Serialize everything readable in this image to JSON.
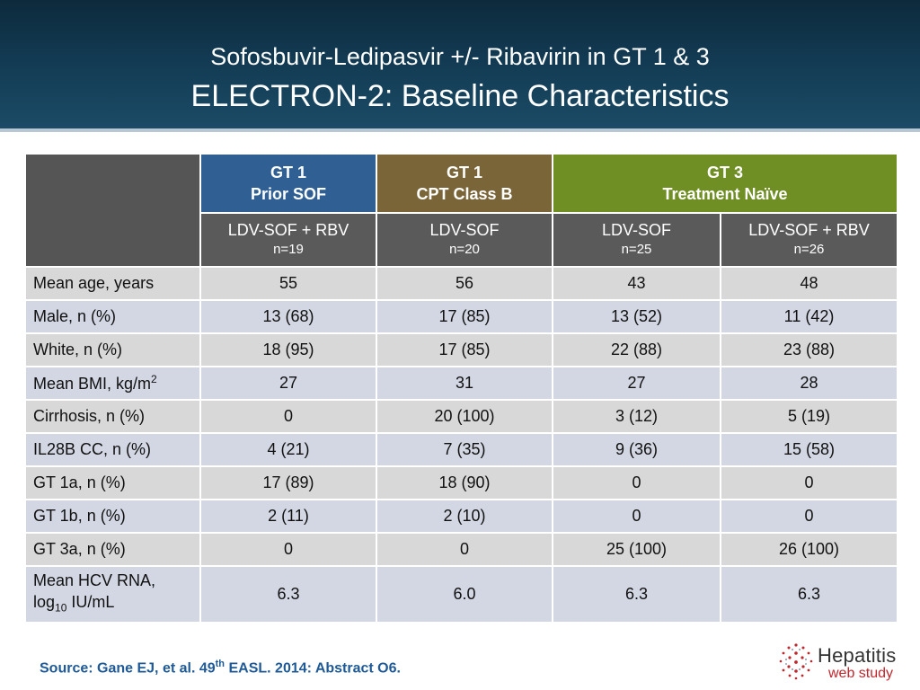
{
  "slide": {
    "title_line1": "Sofosbuvir-Ledipasvir +/- Ribavirin in GT 1 & 3",
    "title_line2": "ELECTRON-2: Baseline Characteristics"
  },
  "colors": {
    "gt1_prior_sof": "#2f5f93",
    "gt1_cpt_b": "#7a6538",
    "gt3_naive": "#6f8f25",
    "source_text": "#1f5a96",
    "logo_accent": "#c0272d"
  },
  "table": {
    "groups": [
      {
        "line1": "GT 1",
        "line2": "Prior SOF"
      },
      {
        "line1": "GT 1",
        "line2": "CPT Class B"
      },
      {
        "line1": "GT 3",
        "line2": "Treatment Naïve"
      }
    ],
    "arms": [
      {
        "treatment": "LDV-SOF + RBV",
        "n": "n=19"
      },
      {
        "treatment": "LDV-SOF",
        "n": "n=20"
      },
      {
        "treatment": "LDV-SOF",
        "n": "n=25"
      },
      {
        "treatment": "LDV-SOF + RBV",
        "n": "n=26"
      }
    ],
    "rows": [
      {
        "label": "Mean age, years",
        "values": [
          "55",
          "56",
          "43",
          "48"
        ]
      },
      {
        "label": "Male, n (%)",
        "values": [
          "13 (68)",
          "17 (85)",
          "13 (52)",
          "11 (42)"
        ]
      },
      {
        "label": "White, n (%)",
        "values": [
          "18 (95)",
          "17 (85)",
          "22 (88)",
          "23 (88)"
        ]
      },
      {
        "label_pre": "Mean BMI, kg/m",
        "label_sup": "2",
        "values": [
          "27",
          "31",
          "27",
          "28"
        ]
      },
      {
        "label": "Cirrhosis, n (%)",
        "values": [
          "0",
          "20 (100)",
          "3 (12)",
          "5 (19)"
        ]
      },
      {
        "label": "IL28B CC, n (%)",
        "values": [
          "4 (21)",
          "7 (35)",
          "9 (36)",
          "15 (58)"
        ]
      },
      {
        "label": "GT 1a, n (%)",
        "values": [
          "17 (89)",
          "18 (90)",
          "0",
          "0"
        ]
      },
      {
        "label": "GT 1b, n (%)",
        "values": [
          "2 (11)",
          "2 (10)",
          "0",
          "0"
        ]
      },
      {
        "label": "GT 3a, n (%)",
        "values": [
          "0",
          "0",
          "25 (100)",
          "26 (100)"
        ]
      },
      {
        "label_line1": "Mean HCV RNA,",
        "label_pre": "log",
        "label_sub": "10",
        "label_post": " IU/mL",
        "values": [
          "6.3",
          "6.0",
          "6.3",
          "6.3"
        ]
      }
    ]
  },
  "source": {
    "pre": "Source: Gane EJ, et al. 49",
    "sup": "th",
    "post": " EASL. 2014: Abstract O6."
  },
  "logo": {
    "word1": "Hepatitis",
    "word2": "web study",
    "icon": "dotted-globe-icon"
  }
}
